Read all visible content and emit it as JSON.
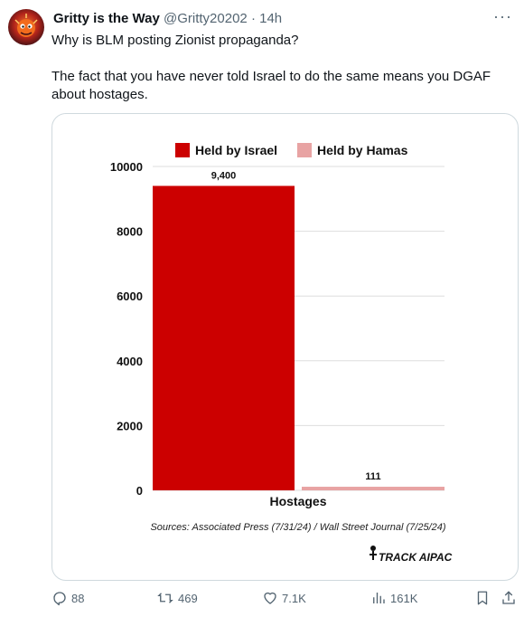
{
  "tweet": {
    "author_name": "Gritty is the Way",
    "handle": "@Gritty20202",
    "separator": "·",
    "time": "14h",
    "more_label": "···",
    "text_line1": "Why is BLM posting Zionist propaganda?",
    "text_line2": "The fact that you have never told Israel to do the same means you DGAF about hostages."
  },
  "actions": {
    "replies": "88",
    "reposts": "469",
    "likes": "7.1K",
    "views": "161K"
  },
  "colors": {
    "israel": "#cc0000",
    "hamas": "#e8a3a3",
    "grid": "#dddddd"
  },
  "chart_data": {
    "type": "bar",
    "categories": [
      "Hostages"
    ],
    "series": [
      {
        "name": "Held by Israel",
        "values": [
          9400
        ],
        "label": "9,400"
      },
      {
        "name": "Held by Hamas",
        "values": [
          111
        ],
        "label": "111"
      }
    ],
    "ylim": [
      0,
      10000
    ],
    "yticks": [
      "0",
      "2000",
      "4000",
      "6000",
      "8000",
      "10000"
    ],
    "ytick_values": [
      0,
      2000,
      4000,
      6000,
      8000,
      10000
    ],
    "xlabel": "Hostages",
    "legend_position": "top",
    "grid": true,
    "source": "Sources: Associated Press (7/31/24) / Wall Street Journal (7/25/24)",
    "logo": "TRACK AIPAC"
  }
}
